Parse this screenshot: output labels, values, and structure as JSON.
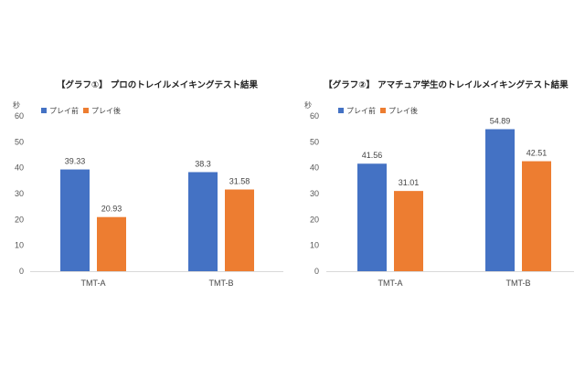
{
  "chart_data": [
    {
      "type": "bar",
      "title": "【グラフ①】 プロのトレイルメイキングテスト結果",
      "ylabel": "秒",
      "ylim": [
        0,
        60
      ],
      "yticks": [
        0,
        10,
        20,
        30,
        40,
        50,
        60
      ],
      "categories": [
        "TMT-A",
        "TMT-B"
      ],
      "series": [
        {
          "name": "プレイ前",
          "color": "#4472C4",
          "values": [
            39.33,
            38.3
          ],
          "labels": [
            "39.33",
            "38.3"
          ]
        },
        {
          "name": "プレイ後",
          "color": "#ED7D31",
          "values": [
            20.93,
            31.58
          ],
          "labels": [
            "20.93",
            "31.58"
          ]
        }
      ],
      "legend": "top-left",
      "grid": false
    },
    {
      "type": "bar",
      "title": "【グラフ②】 アマチュア学生のトレイルメイキングテスト結果",
      "ylabel": "秒",
      "ylim": [
        0,
        60
      ],
      "yticks": [
        0,
        10,
        20,
        30,
        40,
        50,
        60
      ],
      "categories": [
        "TMT-A",
        "TMT-B"
      ],
      "series": [
        {
          "name": "プレイ前",
          "color": "#4472C4",
          "values": [
            41.56,
            54.89
          ],
          "labels": [
            "41.56",
            "54.89"
          ]
        },
        {
          "name": "プレイ後",
          "color": "#ED7D31",
          "values": [
            31.01,
            42.51
          ],
          "labels": [
            "31.01",
            "42.51"
          ]
        }
      ],
      "legend": "top-left",
      "grid": false
    }
  ]
}
